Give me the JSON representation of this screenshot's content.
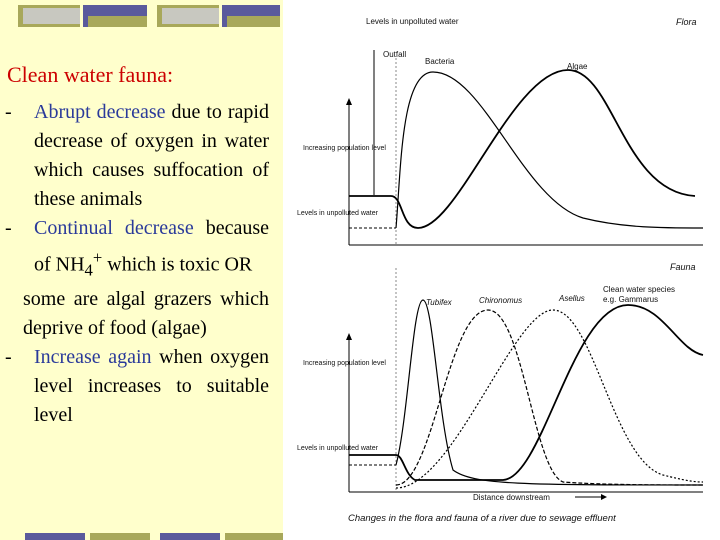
{
  "slide": {
    "title": "Clean water fauna:",
    "points": [
      {
        "dash": "-",
        "lead": "Abrupt decrease",
        "text": " due to rapid decrease of oxygen in water which causes suffocation of these animals"
      },
      {
        "dash": "-",
        "lead": "Continual decrease",
        "text_before": " because of NH",
        "sub": "4",
        "sup": "+",
        "text_after": " which is toxic OR"
      },
      {
        "text": "some are algal grazers which deprive of food (algae)"
      },
      {
        "dash": "-",
        "lead": "Increase again",
        "text": " when oxygen level increases to suitable level"
      }
    ]
  },
  "figure": {
    "flora_panel": {
      "title": "Flora",
      "labels": {
        "clean_levels": "Levels in unpolluted water",
        "outfall": "Outfall",
        "bacteria": "Bacteria",
        "algae": "Algae",
        "y_axis": "Increasing population level",
        "baseline": "Levels in unpolluted water"
      }
    },
    "fauna_panel": {
      "title": "Fauna",
      "labels": {
        "tubifex": "Tubifex",
        "chironomus": "Chironomus",
        "asellus": "Asellus",
        "clean_species_line1": "Clean water species",
        "clean_species_line2": "e.g. Gammarus",
        "y_axis": "Increasing population level",
        "baseline": "Levels in unpolluted water",
        "x_axis": "Distance downstream"
      }
    },
    "caption": "Changes in the flora and fauna of a river due to sewage effluent"
  },
  "colors": {
    "title_red": "#cc0000",
    "highlight_blue": "#2a3a9a",
    "panel_yellow": "#ffffcc",
    "deco_blue": "#5a5a9c",
    "deco_olive": "#a8a85a",
    "deco_grey": "#c8c8c0"
  }
}
